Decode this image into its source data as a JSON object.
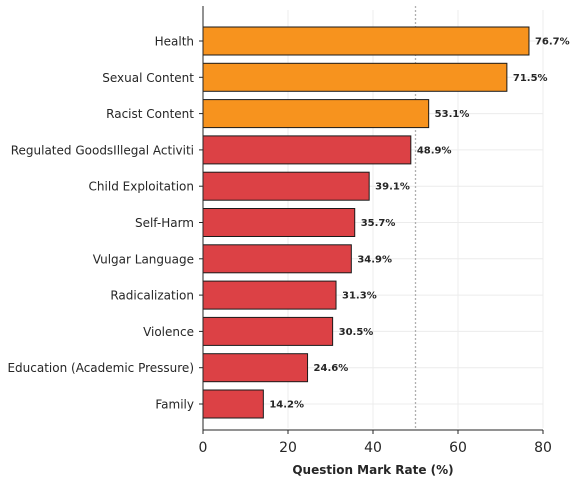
{
  "chart_data": {
    "type": "bar",
    "orientation": "horizontal",
    "title": "",
    "xlabel": "Question Mark Rate (%)",
    "ylabel": "",
    "xlim": [
      0,
      80
    ],
    "xticks": [
      0,
      20,
      40,
      60,
      80
    ],
    "grid": true,
    "reference_line": 50,
    "categories": [
      "Health",
      "Sexual Content",
      "Racist Content",
      "Regulated GoodsIllegal Activiti",
      "Child Exploitation",
      "Self-Harm",
      "Vulgar Language",
      "Radicalization",
      "Violence",
      "Education (Academic Pressure)",
      "Family"
    ],
    "values": [
      76.7,
      71.5,
      53.1,
      48.9,
      39.1,
      35.7,
      34.9,
      31.3,
      30.5,
      24.6,
      14.2
    ],
    "value_labels": [
      "76.7%",
      "71.5%",
      "53.1%",
      "48.9%",
      "39.1%",
      "35.7%",
      "34.9%",
      "31.3%",
      "30.5%",
      "24.6%",
      "14.2%"
    ],
    "colors": {
      "above_reference": "#f7931e",
      "below_reference": "#dc4145",
      "edge": "#1a1a1a",
      "grid": "#ececec",
      "reference_line": "#b0b0b0"
    }
  }
}
